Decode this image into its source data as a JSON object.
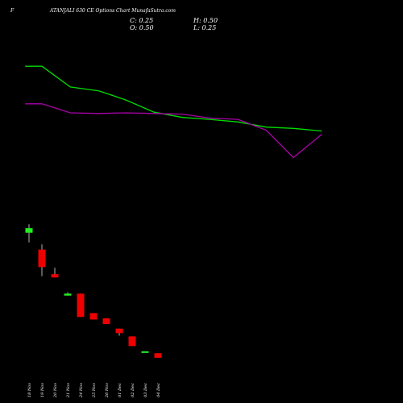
{
  "header": {
    "prefix": "F",
    "title": "ATANJALI 630  CE Options  Chart MunafaSutra.com"
  },
  "ohlc": {
    "close_label": "C: 0.25",
    "high_label": "H: 0.50",
    "open_label": "O: 0.50",
    "low_label": "L: 0.25"
  },
  "colors": {
    "background": "#000000",
    "bull": "#22ee22",
    "bear": "#ee0000",
    "ma_fast": "#00dd00",
    "ma_slow": "#aa00aa"
  },
  "chart_data": {
    "type": "candlestick",
    "categories": [
      "18 Nov",
      "19 Nov",
      "20 Nov",
      "21 Nov",
      "24 Nov",
      "25 Nov",
      "26 Nov",
      "01 Dec",
      "02 Dec",
      "03 Dec",
      "04 Dec"
    ],
    "candles": [
      {
        "date": "18 Nov",
        "open": 14.3,
        "high": 15.6,
        "low": 12.8,
        "close": 15.0
      },
      {
        "date": "19 Nov",
        "open": 11.7,
        "high": 12.5,
        "low": 7.6,
        "close": 9.0
      },
      {
        "date": "20 Nov",
        "open": 7.9,
        "high": 8.9,
        "low": 7.4,
        "close": 7.4
      },
      {
        "date": "21 Nov",
        "open": 4.6,
        "high": 5.1,
        "low": 4.6,
        "close": 4.9
      },
      {
        "date": "24 Nov",
        "open": 4.9,
        "high": 4.9,
        "low": 1.3,
        "close": 1.3
      },
      {
        "date": "25 Nov",
        "open": 1.9,
        "high": 1.9,
        "low": 0.9,
        "close": 0.9
      },
      {
        "date": "26 Nov",
        "open": 1.1,
        "high": 1.1,
        "low": 0.6,
        "close": 0.2
      },
      {
        "date": "01 Dec",
        "open": -0.5,
        "high": -0.5,
        "low": -1.6,
        "close": -1.2
      },
      {
        "date": "02 Dec",
        "open": -1.7,
        "high": -1.7,
        "low": -3.2,
        "close": -3.2
      },
      {
        "date": "03 Dec",
        "open": -4.1,
        "high": -4.0,
        "low": -4.2,
        "close": -4.0
      },
      {
        "date": "04 Dec",
        "open": -4.3,
        "high": -4.3,
        "low": -5.0,
        "close": -5.0
      }
    ],
    "ma_fast": [
      {
        "x": -0.3,
        "y": 40.0
      },
      {
        "x": 1.0,
        "y": 40.0
      },
      {
        "x": 3.2,
        "y": 36.8
      },
      {
        "x": 5.4,
        "y": 36.2
      },
      {
        "x": 7.5,
        "y": 34.8
      },
      {
        "x": 9.7,
        "y": 32.9
      },
      {
        "x": 11.9,
        "y": 32.1
      },
      {
        "x": 14.0,
        "y": 31.8
      },
      {
        "x": 16.2,
        "y": 31.4
      },
      {
        "x": 18.4,
        "y": 30.6
      },
      {
        "x": 20.5,
        "y": 30.4
      },
      {
        "x": 22.7,
        "y": 30.0
      }
    ],
    "ma_slow": [
      {
        "x": -0.3,
        "y": 34.2
      },
      {
        "x": 1.0,
        "y": 34.2
      },
      {
        "x": 3.2,
        "y": 32.8
      },
      {
        "x": 5.4,
        "y": 32.7
      },
      {
        "x": 7.5,
        "y": 32.8
      },
      {
        "x": 9.7,
        "y": 32.7
      },
      {
        "x": 11.9,
        "y": 32.6
      },
      {
        "x": 14.0,
        "y": 32.0
      },
      {
        "x": 16.2,
        "y": 31.8
      },
      {
        "x": 18.4,
        "y": 30.1
      },
      {
        "x": 20.5,
        "y": 25.9
      },
      {
        "x": 22.7,
        "y": 29.5
      }
    ],
    "ylim": [
      -8.0,
      44.0
    ],
    "grid": false
  }
}
